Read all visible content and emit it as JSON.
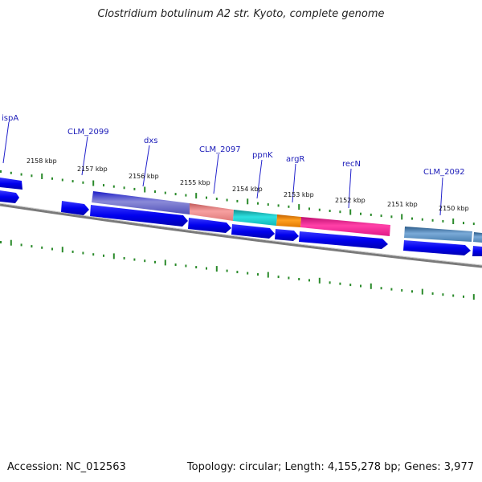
{
  "title": "Clostridium botulinum A2 str. Kyoto, complete genome",
  "footer": {
    "accession": "Accession: NC_012563",
    "summary": "Topology: circular; Length: 4,155,278 bp; Genes: 3,977"
  },
  "colors": {
    "forward_gene": "#0000ee",
    "tick_green": "#2a8a2a",
    "backbone": "#7a7a7a"
  },
  "kbp_ticks": [
    "2158 kbp",
    "2157 kbp",
    "2156 kbp",
    "2155 kbp",
    "2154 kbp",
    "2153 kbp",
    "2152 kbp",
    "2151 kbp",
    "2150 kbp"
  ],
  "gene_labels": [
    "ispA",
    "CLM_2099",
    "dxs",
    "CLM_2097",
    "ppnK",
    "argR",
    "recN",
    "CLM_2092"
  ],
  "feature_colors": [
    "#6f6fc8",
    "#ee9090",
    "#22cccc",
    "#ff8800",
    "#ff2299",
    "#5a8fc0",
    "#5a8fc0"
  ]
}
